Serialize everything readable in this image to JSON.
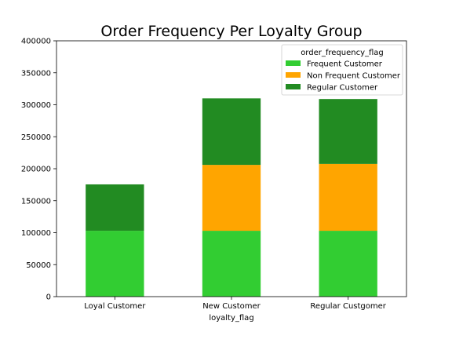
{
  "chart_data": {
    "type": "bar",
    "stacked": true,
    "title": "Order Frequency Per Loyalty Group",
    "xlabel": "loyalty_flag",
    "ylabel": "",
    "categories": [
      "Loyal Customer",
      "New Customer",
      "Regular Custgomer"
    ],
    "ylim": [
      0,
      400000
    ],
    "yticks": [
      0,
      50000,
      100000,
      150000,
      200000,
      250000,
      300000,
      350000,
      400000
    ],
    "legend": {
      "title": "order_frequency_flag",
      "placement": "top-right"
    },
    "series": [
      {
        "name": "Frequent Customer",
        "color": "#32cd32",
        "values": [
          103000,
          103000,
          103000
        ]
      },
      {
        "name": "Non Frequent Customer",
        "color": "#ffa500",
        "values": [
          0,
          103000,
          104500
        ]
      },
      {
        "name": "Regular Customer",
        "color": "#228b22",
        "values": [
          72500,
          104000,
          101500
        ]
      }
    ],
    "grid": false
  }
}
